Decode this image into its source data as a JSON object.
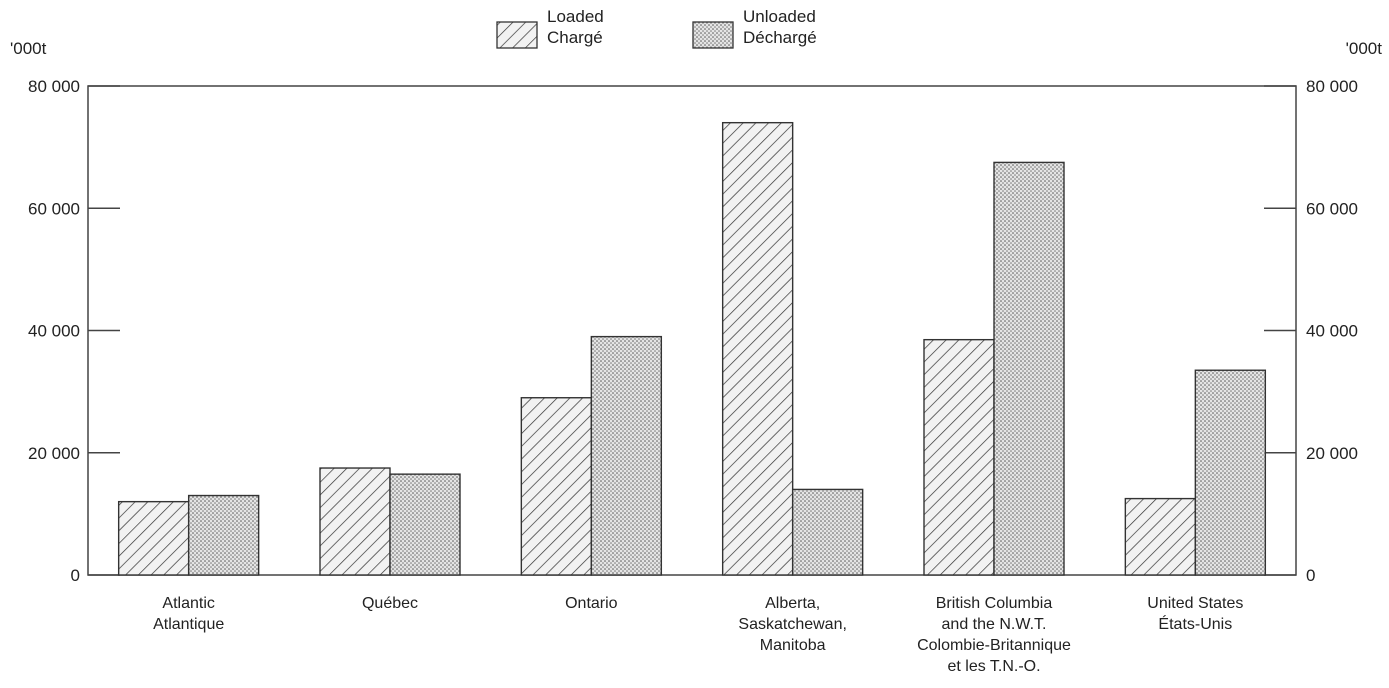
{
  "chart_data": {
    "type": "bar",
    "unit_left": "'000t",
    "unit_right": "'000t",
    "ylim": [
      0,
      80000
    ],
    "yticks": [
      "0",
      "20 000",
      "40 000",
      "60 000",
      "80 000"
    ],
    "categories": [
      [
        "Atlantic",
        "Atlantique"
      ],
      [
        "Québec"
      ],
      [
        "Ontario"
      ],
      [
        "Alberta,",
        "Saskatchewan,",
        "Manitoba"
      ],
      [
        "British Columbia",
        "and the N.W.T.",
        "Colombie-Britannique",
        "et les T.N.-O."
      ],
      [
        "United States",
        "États-Unis"
      ]
    ],
    "series": [
      {
        "name": [
          "Loaded",
          "Chargé"
        ],
        "pattern": "hatch",
        "values": [
          12000,
          17500,
          29000,
          74000,
          38500,
          12500
        ]
      },
      {
        "name": [
          "Unloaded",
          "Déchargé"
        ],
        "pattern": "dots",
        "values": [
          13000,
          16500,
          39000,
          14000,
          67500,
          33500
        ]
      }
    ],
    "grid": false,
    "legend_position": "top-center"
  }
}
